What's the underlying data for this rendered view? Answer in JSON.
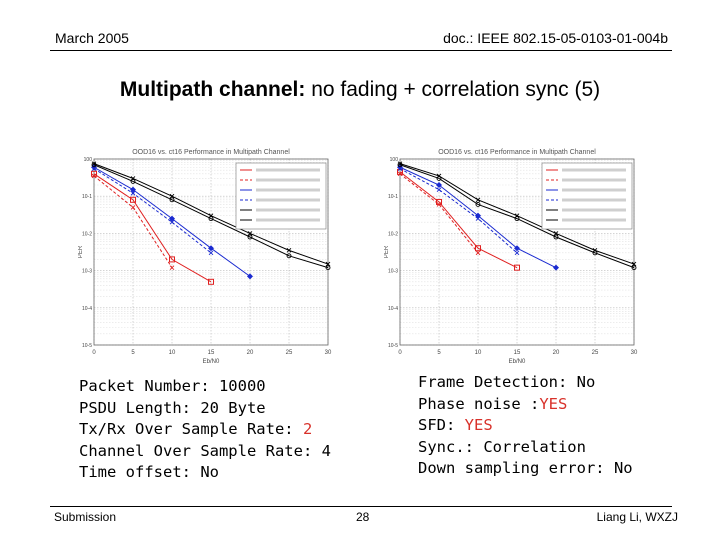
{
  "header": {
    "date": "March 2005",
    "doc_id": "doc.: IEEE 802.15-05-0103-01-004b"
  },
  "slide": {
    "title_bold": "Multipath channel:",
    "title_rest": " no fading + correlation sync (5)"
  },
  "left_params": {
    "line1": "Packet Number: 10000",
    "line2": "PSDU Length: 20 Byte",
    "line3_label": "Tx/Rx Over Sample Rate: ",
    "line3_value": "2",
    "line4": "Channel Over Sample Rate: 4",
    "line5": "Time offset: No"
  },
  "right_params": {
    "line1": "Frame Detection: No",
    "line2_label": "Phase noise :",
    "line2_value": "YES",
    "line3_label": "SFD: ",
    "line3_value": "YES",
    "line4": "Sync.: Correlation",
    "line5": "Down sampling error: No"
  },
  "footer": {
    "left": "Submission",
    "page": "28",
    "right": "Liang Li, WXZJ"
  },
  "colors": {
    "red_series": "#e02020",
    "blue_series": "#1a2ad0",
    "black_series": "#000000",
    "highlight_text": "#d8312a"
  },
  "chart_data": [
    {
      "type": "line",
      "title": "OOD16 vs. ct16 Performance in Multipath Channel",
      "xlabel": "Eb/N0",
      "ylabel": "PER",
      "xlim": [
        0,
        30
      ],
      "ylim_log10": [
        -5,
        0
      ],
      "log_y": true,
      "grid": true,
      "legend_placement": "top-right",
      "series": [
        {
          "color": "red_series",
          "marker": "square",
          "style": "solid",
          "x": [
            0,
            5,
            10,
            15
          ],
          "y": [
            0.4,
            0.08,
            0.002,
            0.0005
          ]
        },
        {
          "color": "red_series",
          "marker": "x",
          "style": "dashed",
          "x": [
            0,
            5,
            10
          ],
          "y": [
            0.35,
            0.05,
            0.0012
          ]
        },
        {
          "color": "blue_series",
          "marker": "diamond",
          "style": "solid",
          "x": [
            0,
            5,
            10,
            15,
            20
          ],
          "y": [
            0.6,
            0.15,
            0.025,
            0.004,
            0.0007
          ]
        },
        {
          "color": "blue_series",
          "marker": "x",
          "style": "dashed",
          "x": [
            0,
            5,
            10,
            15
          ],
          "y": [
            0.55,
            0.12,
            0.02,
            0.003
          ]
        },
        {
          "color": "black_series",
          "marker": "o",
          "style": "solid",
          "x": [
            0,
            5,
            10,
            15,
            20,
            25,
            30
          ],
          "y": [
            0.7,
            0.25,
            0.08,
            0.025,
            0.008,
            0.0025,
            0.0012
          ]
        },
        {
          "color": "black_series",
          "marker": "x",
          "style": "solid",
          "x": [
            0,
            5,
            10,
            15,
            20,
            25,
            30
          ],
          "y": [
            0.75,
            0.3,
            0.1,
            0.03,
            0.01,
            0.0035,
            0.0015
          ]
        }
      ]
    },
    {
      "type": "line",
      "title": "OOD16 vs. ct16 Performance in Multipath Channel",
      "xlabel": "Eb/N0",
      "ylabel": "PER",
      "xlim": [
        0,
        30
      ],
      "ylim_log10": [
        -5,
        0
      ],
      "log_y": true,
      "grid": true,
      "legend_placement": "top-right",
      "series": [
        {
          "color": "red_series",
          "marker": "square",
          "style": "solid",
          "x": [
            0,
            5,
            10,
            15
          ],
          "y": [
            0.45,
            0.07,
            0.004,
            0.0012
          ]
        },
        {
          "color": "red_series",
          "marker": "x",
          "style": "dashed",
          "x": [
            0,
            5,
            10
          ],
          "y": [
            0.4,
            0.06,
            0.003
          ]
        },
        {
          "color": "blue_series",
          "marker": "diamond",
          "style": "solid",
          "x": [
            0,
            5,
            10,
            15,
            20
          ],
          "y": [
            0.6,
            0.2,
            0.03,
            0.004,
            0.0012
          ]
        },
        {
          "color": "blue_series",
          "marker": "x",
          "style": "dashed",
          "x": [
            0,
            5,
            10,
            15
          ],
          "y": [
            0.55,
            0.15,
            0.025,
            0.003
          ]
        },
        {
          "color": "black_series",
          "marker": "o",
          "style": "solid",
          "x": [
            0,
            5,
            10,
            15,
            20,
            25,
            30
          ],
          "y": [
            0.7,
            0.3,
            0.06,
            0.025,
            0.008,
            0.003,
            0.0012
          ]
        },
        {
          "color": "black_series",
          "marker": "x",
          "style": "solid",
          "x": [
            0,
            5,
            10,
            15,
            20,
            25,
            30
          ],
          "y": [
            0.75,
            0.35,
            0.08,
            0.03,
            0.01,
            0.0035,
            0.0015
          ]
        }
      ]
    }
  ]
}
